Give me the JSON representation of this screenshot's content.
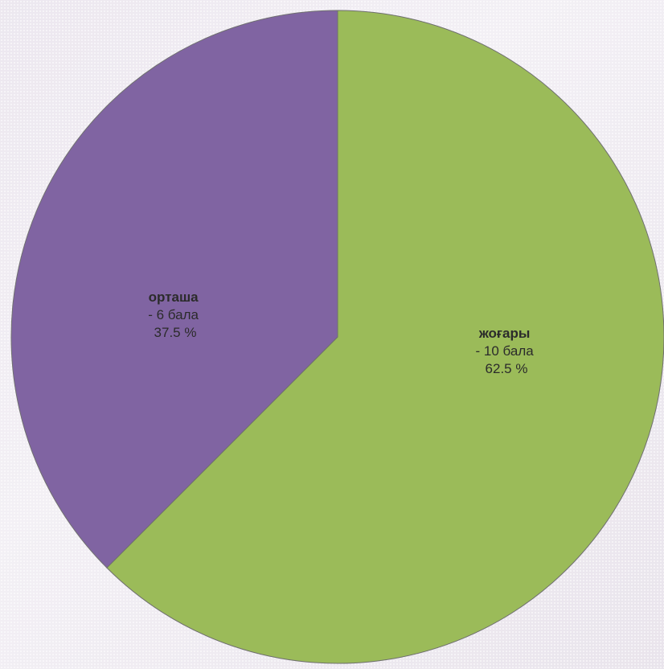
{
  "chart_data": {
    "type": "pie",
    "title": "",
    "slices": [
      {
        "name": "жоғары",
        "value": 10,
        "value_text": "- 10 бала",
        "percent": 62.5,
        "percent_text": "62.5 %",
        "color": "#9bbb59"
      },
      {
        "name": "орташа",
        "value": 6,
        "value_text": "- 6 бала",
        "percent": 37.5,
        "percent_text": "37.5 %",
        "color": "#8064a2"
      }
    ]
  }
}
